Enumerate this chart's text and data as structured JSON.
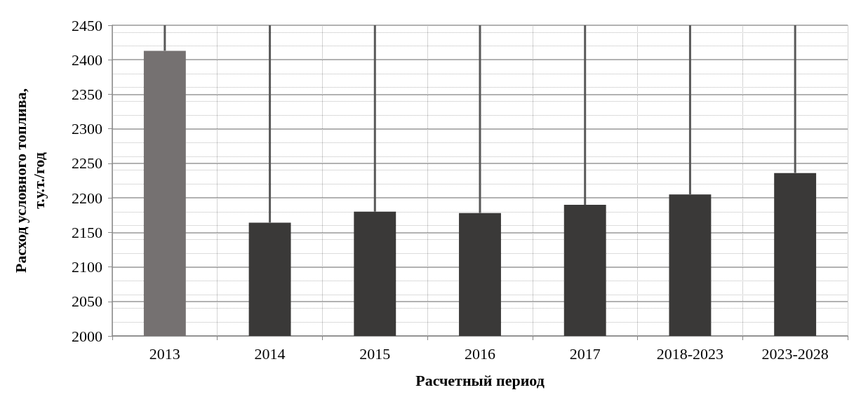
{
  "chart_data": {
    "type": "bar",
    "xlabel": "Расчетный период",
    "ylabel": "Расход условного топлива,\nт.у.т./год",
    "categories": [
      "2013",
      "2014",
      "2015",
      "2016",
      "2017",
      "2018-2023",
      "2023-2028"
    ],
    "values": [
      2413,
      2164,
      2180,
      2178,
      2190,
      2205,
      2236
    ],
    "colors": [
      "#757171",
      "#3a3938",
      "#3a3938",
      "#3a3938",
      "#3a3938",
      "#3a3938",
      "#3a3938"
    ],
    "errors": [
      [
        2413,
        2450
      ],
      [
        2164,
        2450
      ],
      [
        2180,
        2450
      ],
      [
        2178,
        2450
      ],
      [
        2190,
        2450
      ],
      [
        2205,
        2450
      ],
      [
        2236,
        2450
      ]
    ],
    "ylim": [
      2000,
      2450
    ],
    "yticks": [
      2000,
      2050,
      2100,
      2150,
      2200,
      2250,
      2300,
      2350,
      2400,
      2450
    ],
    "grid": true
  }
}
